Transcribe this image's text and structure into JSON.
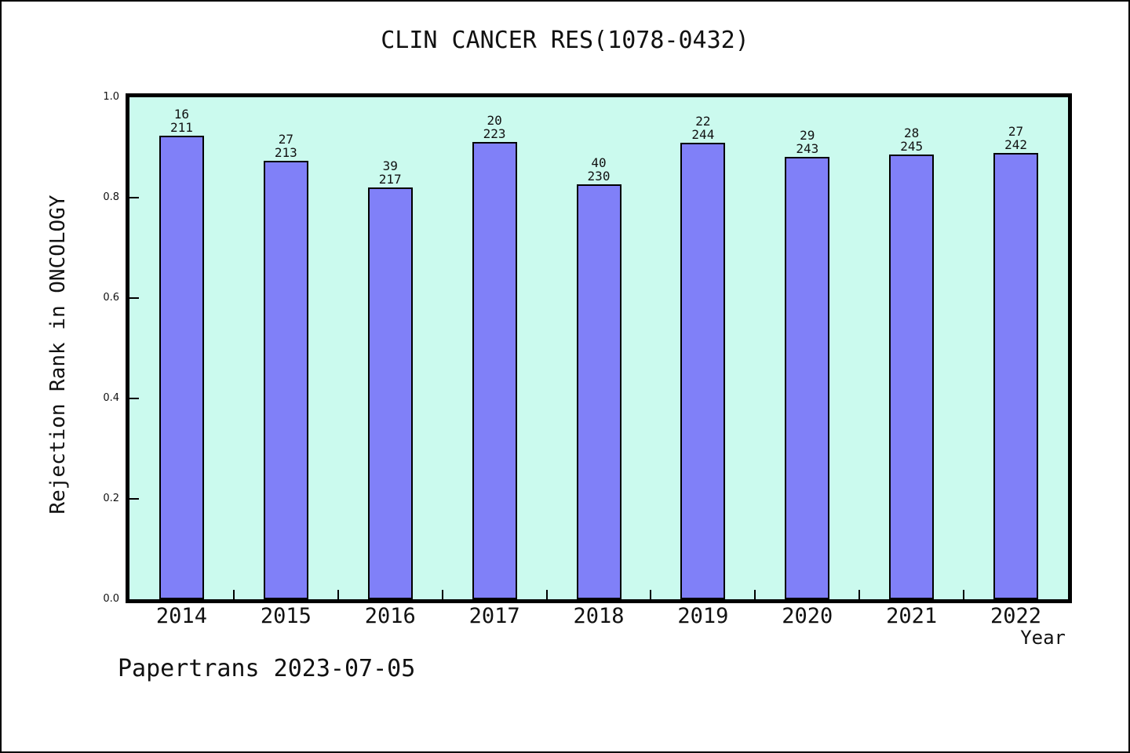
{
  "title": "CLIN CANCER RES(1078-0432)",
  "footer": "Papertrans 2023-07-05",
  "chart_data": {
    "type": "bar",
    "title": "CLIN CANCER RES(1078-0432)",
    "xlabel": "Year",
    "ylabel": "Rejection Rank in ONCOLOGY",
    "categories": [
      "2014",
      "2015",
      "2016",
      "2017",
      "2018",
      "2019",
      "2020",
      "2021",
      "2022"
    ],
    "bars": [
      {
        "year": "2014",
        "rank": 16,
        "total": 211,
        "value": 0.9242
      },
      {
        "year": "2015",
        "rank": 27,
        "total": 213,
        "value": 0.8732
      },
      {
        "year": "2016",
        "rank": 39,
        "total": 217,
        "value": 0.8203
      },
      {
        "year": "2017",
        "rank": 20,
        "total": 223,
        "value": 0.9103
      },
      {
        "year": "2018",
        "rank": 40,
        "total": 230,
        "value": 0.8261
      },
      {
        "year": "2019",
        "rank": 22,
        "total": 244,
        "value": 0.9098
      },
      {
        "year": "2020",
        "rank": 29,
        "total": 243,
        "value": 0.8807
      },
      {
        "year": "2021",
        "rank": 28,
        "total": 245,
        "value": 0.8857
      },
      {
        "year": "2022",
        "rank": 27,
        "total": 242,
        "value": 0.8884
      }
    ],
    "bar_label_format": "rank newline total",
    "ylim": [
      0,
      1
    ],
    "yticks": [
      0.0,
      0.2,
      0.4,
      0.6,
      0.8,
      1.0
    ],
    "grid": false,
    "legend": null,
    "colors": {
      "bar_fill": "#8080F8",
      "bar_edge": "#000000",
      "plot_bg": "#CBFAEE",
      "frame": "#000000",
      "text": "#111111"
    }
  }
}
